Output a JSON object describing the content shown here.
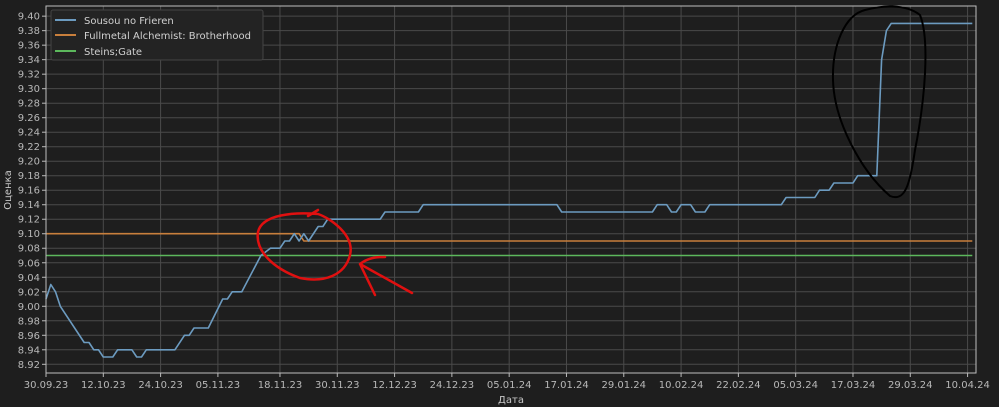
{
  "chart_data": {
    "type": "line",
    "title": "",
    "xlabel": "Дата",
    "ylabel": "Оценка",
    "xlim": [
      "30.09.23",
      "11.04.24"
    ],
    "ylim": [
      8.908,
      9.414
    ],
    "grid": true,
    "legend_position": "top-left",
    "x_ticks": [
      "30.09.23",
      "12.10.23",
      "24.10.23",
      "05.11.23",
      "18.11.23",
      "30.11.23",
      "12.12.23",
      "24.12.23",
      "05.01.24",
      "17.01.24",
      "29.01.24",
      "10.02.24",
      "22.02.24",
      "05.03.24",
      "17.03.24",
      "29.03.24",
      "10.04.24"
    ],
    "y_ticks": [
      "8.92",
      "8.94",
      "8.96",
      "8.98",
      "9.00",
      "9.02",
      "9.04",
      "9.06",
      "9.08",
      "9.10",
      "9.12",
      "9.14",
      "9.16",
      "9.18",
      "9.20",
      "9.22",
      "9.24",
      "9.26",
      "9.28",
      "9.30",
      "9.32",
      "9.34",
      "9.36",
      "9.38",
      "9.40"
    ],
    "series": [
      {
        "name": "Sousou no Frieren",
        "color": "#6c9bc0",
        "x": [
          "30.09.23",
          "01.10.23",
          "02.10.23",
          "03.10.23",
          "08.10.23",
          "09.10.23",
          "10.10.23",
          "11.10.23",
          "12.10.23",
          "14.10.23",
          "15.10.23",
          "18.10.23",
          "19.10.23",
          "20.10.23",
          "21.10.23",
          "27.10.23",
          "29.10.23",
          "30.10.23",
          "31.10.23",
          "03.11.23",
          "06.11.23",
          "07.11.23",
          "08.11.23",
          "10.11.23",
          "14.11.23",
          "16.11.23",
          "18.11.23",
          "19.11.23",
          "20.11.23",
          "21.11.23",
          "22.11.23",
          "23.11.23",
          "24.11.23",
          "26.11.23",
          "27.11.23",
          "28.11.23",
          "09.12.23",
          "10.12.23",
          "17.12.23",
          "18.12.23",
          "15.01.24",
          "16.01.24",
          "04.02.24",
          "05.02.24",
          "07.02.24",
          "08.02.24",
          "09.02.24",
          "10.02.24",
          "12.02.24",
          "13.02.24",
          "15.02.24",
          "16.02.24",
          "02.03.24",
          "03.03.24",
          "09.03.24",
          "10.03.24",
          "12.03.24",
          "13.03.24",
          "17.03.24",
          "18.03.24",
          "22.03.24",
          "23.03.24",
          "24.03.24",
          "25.03.24",
          "11.04.24"
        ],
        "y": [
          9.01,
          9.03,
          9.02,
          9.0,
          8.95,
          8.95,
          8.94,
          8.94,
          8.93,
          8.93,
          8.94,
          8.94,
          8.93,
          8.93,
          8.94,
          8.94,
          8.96,
          8.96,
          8.97,
          8.97,
          9.01,
          9.01,
          9.02,
          9.02,
          9.07,
          9.08,
          9.08,
          9.09,
          9.09,
          9.1,
          9.09,
          9.1,
          9.09,
          9.11,
          9.11,
          9.12,
          9.12,
          9.13,
          9.13,
          9.14,
          9.14,
          9.13,
          9.13,
          9.14,
          9.14,
          9.13,
          9.13,
          9.14,
          9.14,
          9.13,
          9.13,
          9.14,
          9.14,
          9.15,
          9.15,
          9.16,
          9.16,
          9.17,
          9.17,
          9.18,
          9.18,
          9.34,
          9.38,
          9.39,
          9.39
        ]
      },
      {
        "name": "Fullmetal Alchemist: Brotherhood",
        "color": "#c87f3c",
        "x": [
          "30.09.23",
          "22.11.23",
          "23.11.23",
          "11.04.24"
        ],
        "y": [
          9.1,
          9.1,
          9.09,
          9.09
        ]
      },
      {
        "name": "Steins;Gate",
        "color": "#5cb85c",
        "x": [
          "30.09.23",
          "11.04.24"
        ],
        "y": [
          9.07,
          9.07
        ]
      }
    ]
  }
}
